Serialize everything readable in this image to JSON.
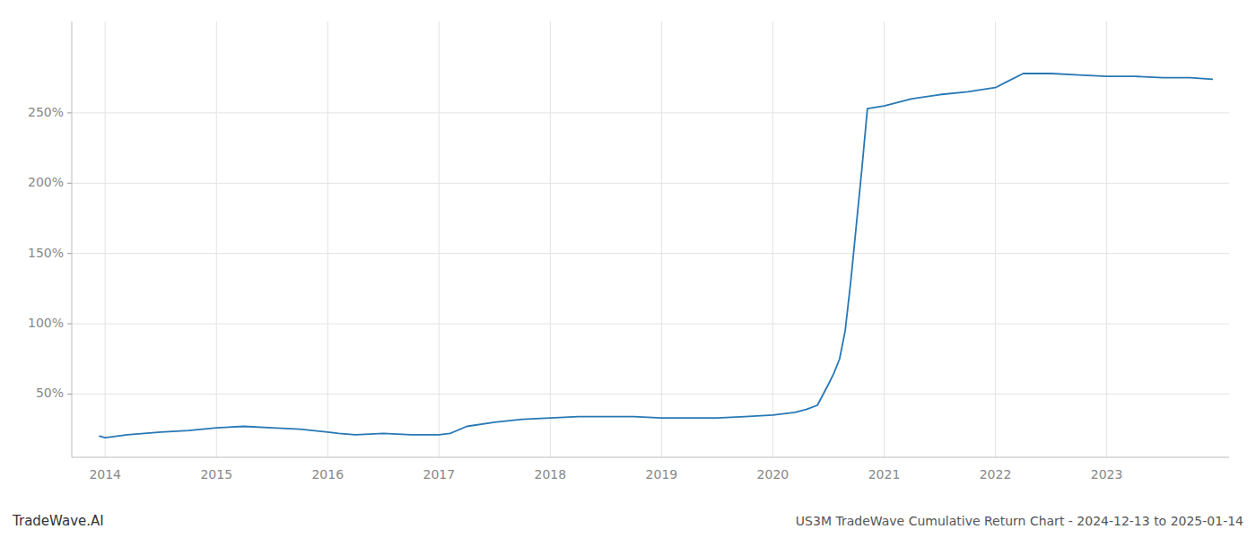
{
  "chart_data": {
    "type": "line",
    "title": "US3M TradeWave Cumulative Return Chart - 2024-12-13 to 2025-01-14",
    "annotations": [
      "TradeWave.AI"
    ],
    "color": "#2878b5",
    "x": [
      2013.95,
      2014.0,
      2014.2,
      2014.5,
      2014.75,
      2015.0,
      2015.25,
      2015.5,
      2015.75,
      2016.0,
      2016.1,
      2016.25,
      2016.5,
      2016.75,
      2017.0,
      2017.1,
      2017.25,
      2017.5,
      2017.75,
      2018.0,
      2018.25,
      2018.5,
      2018.75,
      2019.0,
      2019.25,
      2019.5,
      2019.75,
      2020.0,
      2020.1,
      2020.2,
      2020.3,
      2020.4,
      2020.5,
      2020.55,
      2020.6,
      2020.65,
      2020.7,
      2020.75,
      2020.8,
      2020.85,
      2021.0,
      2021.25,
      2021.5,
      2021.75,
      2022.0,
      2022.1,
      2022.25,
      2022.5,
      2022.75,
      2023.0,
      2023.25,
      2023.5,
      2023.75,
      2023.95
    ],
    "values": [
      20,
      19,
      21,
      23,
      24,
      26,
      27,
      26,
      25,
      23,
      22,
      21,
      22,
      21,
      21,
      22,
      27,
      30,
      32,
      33,
      34,
      34,
      34,
      33,
      33,
      33,
      34,
      35,
      36,
      37,
      39,
      42,
      57,
      65,
      75,
      95,
      130,
      170,
      210,
      253,
      255,
      260,
      263,
      265,
      268,
      272,
      278,
      278,
      277,
      276,
      276,
      275,
      275,
      274
    ],
    "xlim": [
      2013.7,
      2024.1
    ],
    "xticks": [
      2014,
      2015,
      2016,
      2017,
      2018,
      2019,
      2020,
      2021,
      2022,
      2023
    ],
    "ylim": [
      5,
      315
    ],
    "yticks": [
      {
        "value": 50,
        "label": "50%"
      },
      {
        "value": 100,
        "label": "100%"
      },
      {
        "value": 150,
        "label": "150%"
      },
      {
        "value": 200,
        "label": "200%"
      },
      {
        "value": 250,
        "label": "250%"
      }
    ],
    "grid": true
  }
}
